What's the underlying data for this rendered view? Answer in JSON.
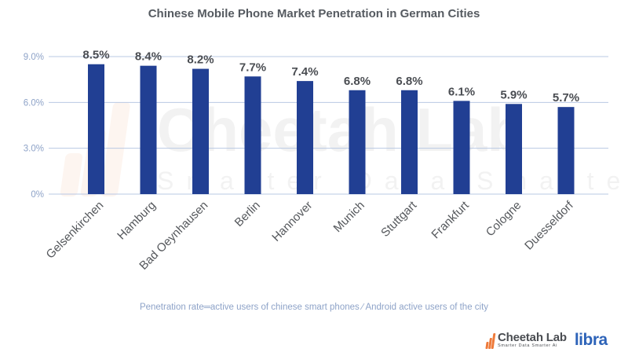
{
  "chart_data": {
    "type": "bar",
    "title": "Chinese Mobile Phone Market Penetration in German Cities",
    "xlabel": "",
    "ylabel": "",
    "categories": [
      "Gelsenkirchen",
      "Hamburg",
      "Bad Oeynhausen",
      "Berlin",
      "Hannover",
      "Munich",
      "Stuttgart",
      "Frankfurt",
      "Cologne",
      "Duesseldorf"
    ],
    "values": [
      8.5,
      8.4,
      8.2,
      7.7,
      7.4,
      6.8,
      6.8,
      6.1,
      5.9,
      5.7
    ],
    "data_labels": [
      "8.5%",
      "8.4%",
      "8.2%",
      "7.7%",
      "7.4%",
      "6.8%",
      "6.8%",
      "6.1%",
      "5.9%",
      "5.7%"
    ],
    "ylim": [
      0,
      9
    ],
    "yticks": [
      0,
      3,
      6,
      9
    ],
    "ytick_labels": [
      "0%",
      "3.0%",
      "6.0%",
      "9.0%"
    ],
    "grid": true,
    "legend": "none",
    "bar_color": "#213f93",
    "grid_color": "#b9c8e3",
    "annotation": "Penetration rate═active users of chinese smart phones ∕ Android active users of the city"
  },
  "footer": {
    "brand": "Cheetah Lab",
    "tagline": "Smarter Data Smarter Ai",
    "partner": "libra"
  },
  "watermark": {
    "brand": "Cheetah Lab",
    "tagline": "Smarter Data Smarter Ai"
  }
}
